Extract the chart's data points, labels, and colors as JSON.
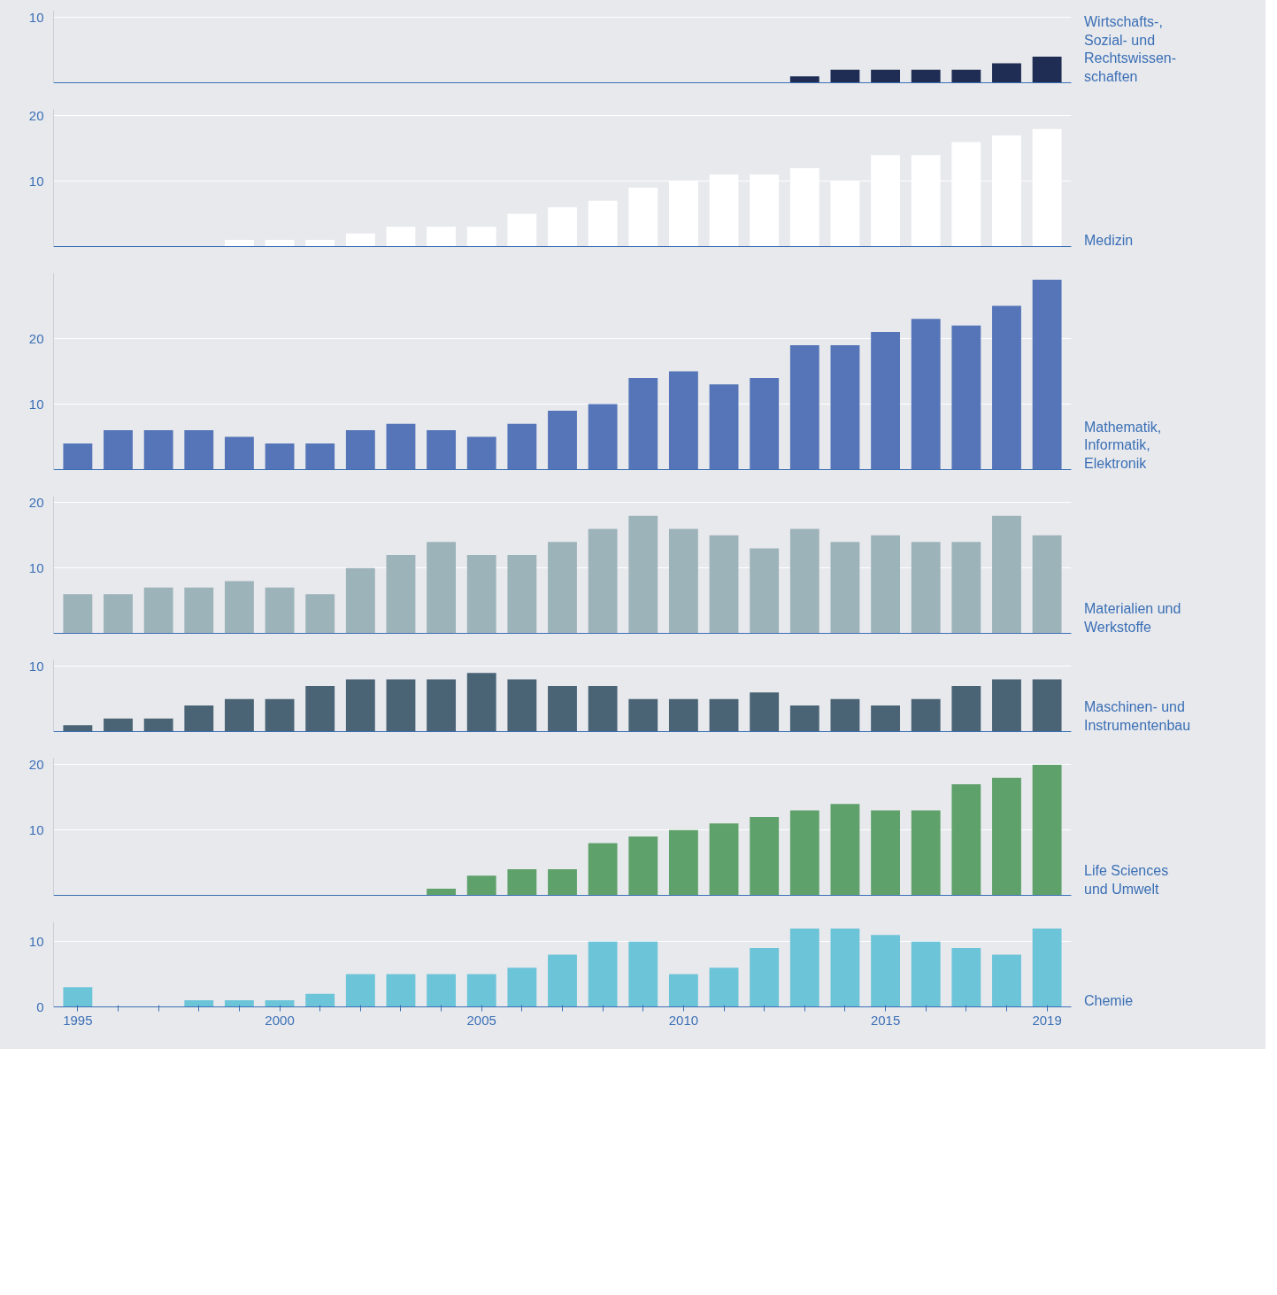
{
  "chart_data": [
    {
      "type": "bar",
      "x": [
        2013,
        2014,
        2015,
        2016,
        2017,
        2018,
        2019
      ],
      "xlim": [
        1994.4,
        2019.6
      ],
      "ylim": [
        0,
        11
      ],
      "yticks": [
        {
          "value": 0,
          "label": null
        },
        10
      ],
      "grid": "y",
      "tick_labels": "y",
      "series": [
        {
          "name": "Wirtschafts-,\nSozial- und\nRechtswissen-\nschaften",
          "color": "#1f2d55",
          "values": [
            1,
            2,
            2,
            2,
            2,
            3,
            4
          ]
        }
      ]
    },
    {
      "type": "bar",
      "x": [
        1999,
        2000,
        2001,
        2002,
        2003,
        2004,
        2005,
        2006,
        2007,
        2008,
        2009,
        2010,
        2011,
        2012,
        2013,
        2014,
        2015,
        2016,
        2017,
        2018,
        2019
      ],
      "xlim": [
        1994.4,
        2019.6
      ],
      "ylim": [
        0,
        21
      ],
      "yticks": [
        10,
        20
      ],
      "grid": "y",
      "tick_labels": "y",
      "series": [
        {
          "name": "Medizin",
          "color": "#ffffff",
          "values": [
            1,
            1,
            1,
            2,
            3,
            3,
            3,
            5,
            6,
            7,
            9,
            10,
            11,
            11,
            12,
            10,
            14,
            14,
            16,
            17,
            18
          ]
        }
      ]
    },
    {
      "type": "bar",
      "x": [
        1995,
        1996,
        1997,
        1998,
        1999,
        2000,
        2001,
        2002,
        2003,
        2004,
        2005,
        2006,
        2007,
        2008,
        2009,
        2010,
        2011,
        2012,
        2013,
        2014,
        2015,
        2016,
        2017,
        2018,
        2019
      ],
      "xlim": [
        1994.4,
        2019.6
      ],
      "ylim": [
        0,
        30
      ],
      "yticks": [
        10,
        20
      ],
      "grid": "y",
      "tick_labels": "y",
      "series": [
        {
          "name": "Mathematik,\nInformatik,\nElektronik",
          "color": "#5575b8",
          "values": [
            4,
            6,
            6,
            6,
            5,
            4,
            4,
            6,
            7,
            6,
            5,
            7,
            9,
            10,
            14,
            15,
            13,
            14,
            19,
            19,
            21,
            23,
            22,
            25,
            29
          ]
        }
      ]
    },
    {
      "type": "bar",
      "x": [
        1995,
        1996,
        1997,
        1998,
        1999,
        2000,
        2001,
        2002,
        2003,
        2004,
        2005,
        2006,
        2007,
        2008,
        2009,
        2010,
        2011,
        2012,
        2013,
        2014,
        2015,
        2016,
        2017,
        2018,
        2019
      ],
      "xlim": [
        1994.4,
        2019.6
      ],
      "ylim": [
        0,
        21
      ],
      "yticks": [
        10,
        20
      ],
      "grid": "y",
      "tick_labels": "y",
      "series": [
        {
          "name": "Materialien und\nWerkstoffe",
          "color": "#9db3ba",
          "values": [
            6,
            6,
            7,
            7,
            8,
            7,
            6,
            10,
            12,
            14,
            12,
            12,
            14,
            16,
            18,
            16,
            15,
            13,
            16,
            14,
            15,
            14,
            14,
            18,
            15
          ]
        }
      ]
    },
    {
      "type": "bar",
      "x": [
        1995,
        1996,
        1997,
        1998,
        1999,
        2000,
        2001,
        2002,
        2003,
        2004,
        2005,
        2006,
        2007,
        2008,
        2009,
        2010,
        2011,
        2012,
        2013,
        2014,
        2015,
        2016,
        2017,
        2018,
        2019
      ],
      "xlim": [
        1994.4,
        2019.6
      ],
      "ylim": [
        0,
        11
      ],
      "yticks": [
        {
          "value": 0,
          "label": null
        },
        10
      ],
      "grid": "y",
      "tick_labels": "y",
      "series": [
        {
          "name": "Maschinen- und\nInstrumentenbau",
          "color": "#4a6476",
          "values": [
            1,
            2,
            2,
            4,
            5,
            5,
            7,
            8,
            8,
            8,
            9,
            8,
            7,
            7,
            5,
            5,
            5,
            6,
            4,
            5,
            4,
            5,
            7,
            8,
            8
          ]
        }
      ]
    },
    {
      "type": "bar",
      "x": [
        2004,
        2005,
        2006,
        2007,
        2008,
        2009,
        2010,
        2011,
        2012,
        2013,
        2014,
        2015,
        2016,
        2017,
        2018,
        2019
      ],
      "xlim": [
        1994.4,
        2019.6
      ],
      "ylim": [
        0,
        21
      ],
      "yticks": [
        10,
        20
      ],
      "grid": "y",
      "tick_labels": "y",
      "series": [
        {
          "name": "Life Sciences\nund Umwelt",
          "color": "#5fa16b",
          "values": [
            1,
            3,
            4,
            4,
            8,
            9,
            10,
            11,
            12,
            13,
            14,
            13,
            13,
            17,
            18,
            20
          ]
        }
      ]
    },
    {
      "type": "bar",
      "x": [
        1995,
        1996,
        1997,
        1998,
        1999,
        2000,
        2001,
        2002,
        2003,
        2004,
        2005,
        2006,
        2007,
        2008,
        2009,
        2010,
        2011,
        2012,
        2013,
        2014,
        2015,
        2016,
        2017,
        2018,
        2019
      ],
      "xlim": [
        1994.4,
        2019.6
      ],
      "ylim": [
        0,
        13
      ],
      "yticks": [
        0,
        10
      ],
      "grid": "y",
      "xticks": [
        1995,
        {
          "value": 1996,
          "label": null
        },
        {
          "value": 1997,
          "label": null
        },
        {
          "value": 1998,
          "label": null
        },
        {
          "value": 1999,
          "label": null
        },
        2000,
        {
          "value": 2001,
          "label": null
        },
        {
          "value": 2002,
          "label": null
        },
        {
          "value": 2003,
          "label": null
        },
        {
          "value": 2004,
          "label": null
        },
        2005,
        {
          "value": 2006,
          "label": null
        },
        {
          "value": 2007,
          "label": null
        },
        {
          "value": 2008,
          "label": null
        },
        {
          "value": 2009,
          "label": null
        },
        2010,
        {
          "value": 2011,
          "label": null
        },
        {
          "value": 2012,
          "label": null
        },
        {
          "value": 2013,
          "label": null
        },
        {
          "value": 2014,
          "label": null
        },
        2015,
        {
          "value": 2016,
          "label": null
        },
        {
          "value": 2017,
          "label": null
        },
        {
          "value": 2018,
          "label": null
        },
        2019
      ],
      "series": [
        {
          "name": "Chemie",
          "color": "#6cc4d8",
          "values": [
            3,
            null,
            null,
            1,
            1,
            1,
            2,
            5,
            5,
            5,
            5,
            6,
            8,
            10,
            10,
            5,
            6,
            9,
            12,
            12,
            11,
            10,
            9,
            8,
            12
          ]
        }
      ]
    }
  ]
}
